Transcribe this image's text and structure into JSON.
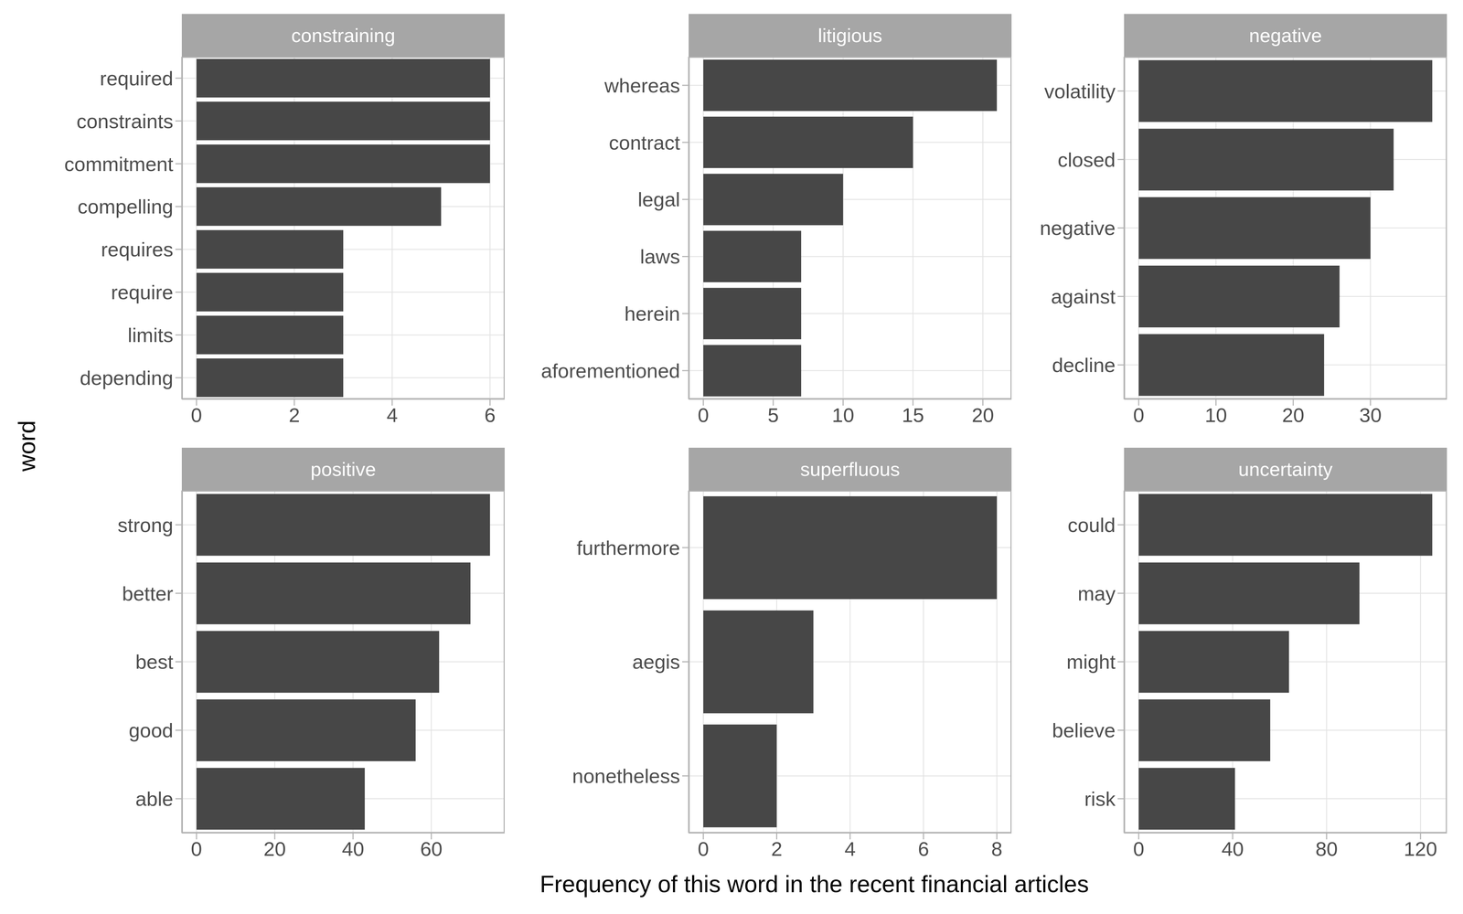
{
  "x_label": "Frequency of this word in the recent financial articles",
  "y_label": "word",
  "chart_data": [
    {
      "type": "bar",
      "title": "constraining",
      "orientation": "horizontal",
      "grid": true,
      "color": "#474747",
      "categories": [
        "required",
        "constraints",
        "commitment",
        "compelling",
        "requires",
        "require",
        "limits",
        "depending"
      ],
      "values": [
        6,
        6,
        6,
        5,
        3,
        3,
        3,
        3
      ],
      "xlim": [
        -0.3,
        6.3
      ],
      "xticks": [
        0,
        2,
        4,
        6
      ]
    },
    {
      "type": "bar",
      "title": "litigious",
      "orientation": "horizontal",
      "grid": true,
      "color": "#474747",
      "categories": [
        "whereas",
        "contract",
        "legal",
        "laws",
        "herein",
        "aforementioned"
      ],
      "values": [
        21,
        15,
        10,
        7,
        7,
        7
      ],
      "xlim": [
        -1.05,
        22.05
      ],
      "xticks": [
        0,
        5,
        10,
        15,
        20
      ]
    },
    {
      "type": "bar",
      "title": "negative",
      "orientation": "horizontal",
      "grid": true,
      "color": "#474747",
      "categories": [
        "volatility",
        "closed",
        "negative",
        "against",
        "decline"
      ],
      "values": [
        38,
        33,
        30,
        26,
        24
      ],
      "xlim": [
        -1.9,
        39.9
      ],
      "xticks": [
        0,
        10,
        20,
        30
      ]
    },
    {
      "type": "bar",
      "title": "positive",
      "orientation": "horizontal",
      "grid": true,
      "color": "#474747",
      "categories": [
        "strong",
        "better",
        "best",
        "good",
        "able"
      ],
      "values": [
        75,
        70,
        62,
        56,
        43
      ],
      "xlim": [
        -3.75,
        78.75
      ],
      "xticks": [
        0,
        20,
        40,
        60
      ]
    },
    {
      "type": "bar",
      "title": "superfluous",
      "orientation": "horizontal",
      "grid": true,
      "color": "#474747",
      "categories": [
        "furthermore",
        "aegis",
        "nonetheless"
      ],
      "values": [
        8,
        3,
        2
      ],
      "xlim": [
        -0.4,
        8.4
      ],
      "xticks": [
        0,
        2,
        4,
        6,
        8
      ]
    },
    {
      "type": "bar",
      "title": "uncertainty",
      "orientation": "horizontal",
      "grid": true,
      "color": "#474747",
      "categories": [
        "could",
        "may",
        "might",
        "believe",
        "risk"
      ],
      "values": [
        125,
        94,
        64,
        56,
        41
      ],
      "xlim": [
        -6.25,
        131.25
      ],
      "xticks": [
        0,
        40,
        80,
        120
      ]
    }
  ]
}
